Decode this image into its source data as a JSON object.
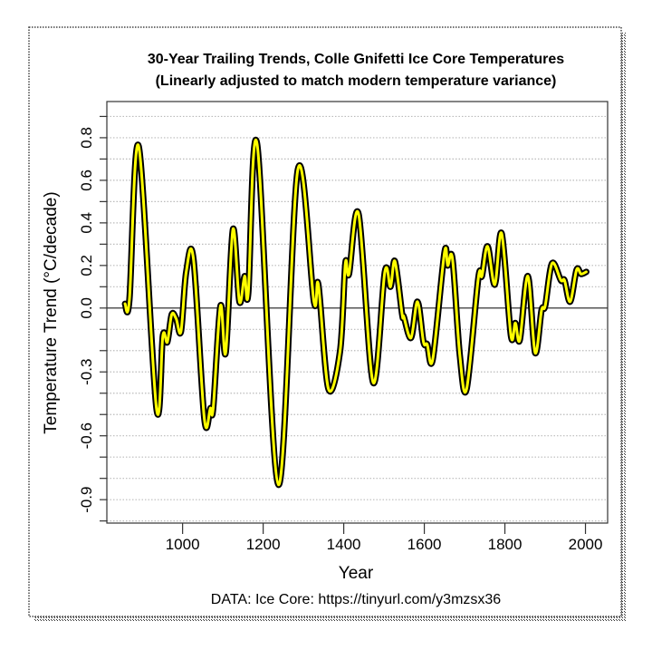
{
  "chart_data": {
    "type": "line",
    "title": "30-Year Trailing Trends, Colle Gnifetti Ice Core Temperatures",
    "subtitle": "(Linearly adjusted to match modern temperature variance)",
    "xlabel": "Year",
    "ylabel": "Temperature Trend (°C/decade)",
    "caption": "DATA: Ice Core: https://tinyurl.com/y3mzsx36",
    "xlim": [
      812,
      2055
    ],
    "ylim": [
      -1.01,
      0.97
    ],
    "x_ticks": [
      1000,
      1200,
      1400,
      1600,
      1800,
      2000
    ],
    "x_tick_labels": [
      "1000",
      "1200",
      "1400",
      "1600",
      "1800",
      "2000"
    ],
    "y_ticks": [
      0.9,
      0.8,
      0.7,
      0.6,
      0.5,
      0.4,
      0.3,
      0.2,
      0.1,
      0.0,
      -0.1,
      -0.2,
      -0.3,
      -0.4,
      -0.5,
      -0.6,
      -0.7,
      -0.8,
      -0.9,
      -1.0
    ],
    "y_tick_labels": [
      {
        "value": 0.8,
        "label": "0.8"
      },
      {
        "value": 0.6,
        "label": "0.6"
      },
      {
        "value": 0.4,
        "label": "0.4"
      },
      {
        "value": 0.2,
        "label": "0.2"
      },
      {
        "value": 0.0,
        "label": "0.0"
      },
      {
        "value": -0.3,
        "label": "-0.3"
      },
      {
        "value": -0.6,
        "label": "-0.6"
      },
      {
        "value": -0.9,
        "label": "-0.9"
      }
    ],
    "grid": "horizontal dotted",
    "zero_line": true,
    "series": [
      {
        "color": "#ffff00",
        "outline_color": "#000000",
        "x": [
          857,
          868,
          891,
          935,
          951,
          962,
          973,
          984,
          996,
          1009,
          1027,
          1054,
          1069,
          1076,
          1094,
          1107,
          1125,
          1141,
          1154,
          1163,
          1185,
          1238,
          1286,
          1326,
          1337,
          1362,
          1391,
          1404,
          1413,
          1437,
          1473,
          1502,
          1516,
          1527,
          1545,
          1549,
          1567,
          1583,
          1598,
          1607,
          1621,
          1650,
          1658,
          1670,
          1688,
          1705,
          1734,
          1743,
          1757,
          1775,
          1792,
          1815,
          1826,
          1837,
          1857,
          1875,
          1891,
          1900,
          1917,
          1939,
          1948,
          1962,
          1978,
          1989,
          2002
        ],
        "y": [
          0.02,
          0.04,
          0.76,
          -0.47,
          -0.13,
          -0.16,
          -0.03,
          -0.05,
          -0.11,
          0.17,
          0.23,
          -0.52,
          -0.47,
          -0.47,
          0.01,
          -0.21,
          0.37,
          0.03,
          0.15,
          0.07,
          0.77,
          -0.83,
          0.65,
          0.03,
          0.11,
          -0.38,
          -0.2,
          0.21,
          0.16,
          0.44,
          -0.35,
          0.17,
          0.1,
          0.22,
          -0.03,
          -0.04,
          -0.14,
          0.03,
          -0.16,
          -0.17,
          -0.24,
          0.26,
          0.2,
          0.23,
          -0.22,
          -0.38,
          0.14,
          0.15,
          0.29,
          0.11,
          0.35,
          -0.13,
          -0.07,
          -0.15,
          0.15,
          -0.21,
          -0.01,
          0.01,
          0.21,
          0.13,
          0.13,
          0.03,
          0.18,
          0.16,
          0.17
        ]
      }
    ]
  }
}
